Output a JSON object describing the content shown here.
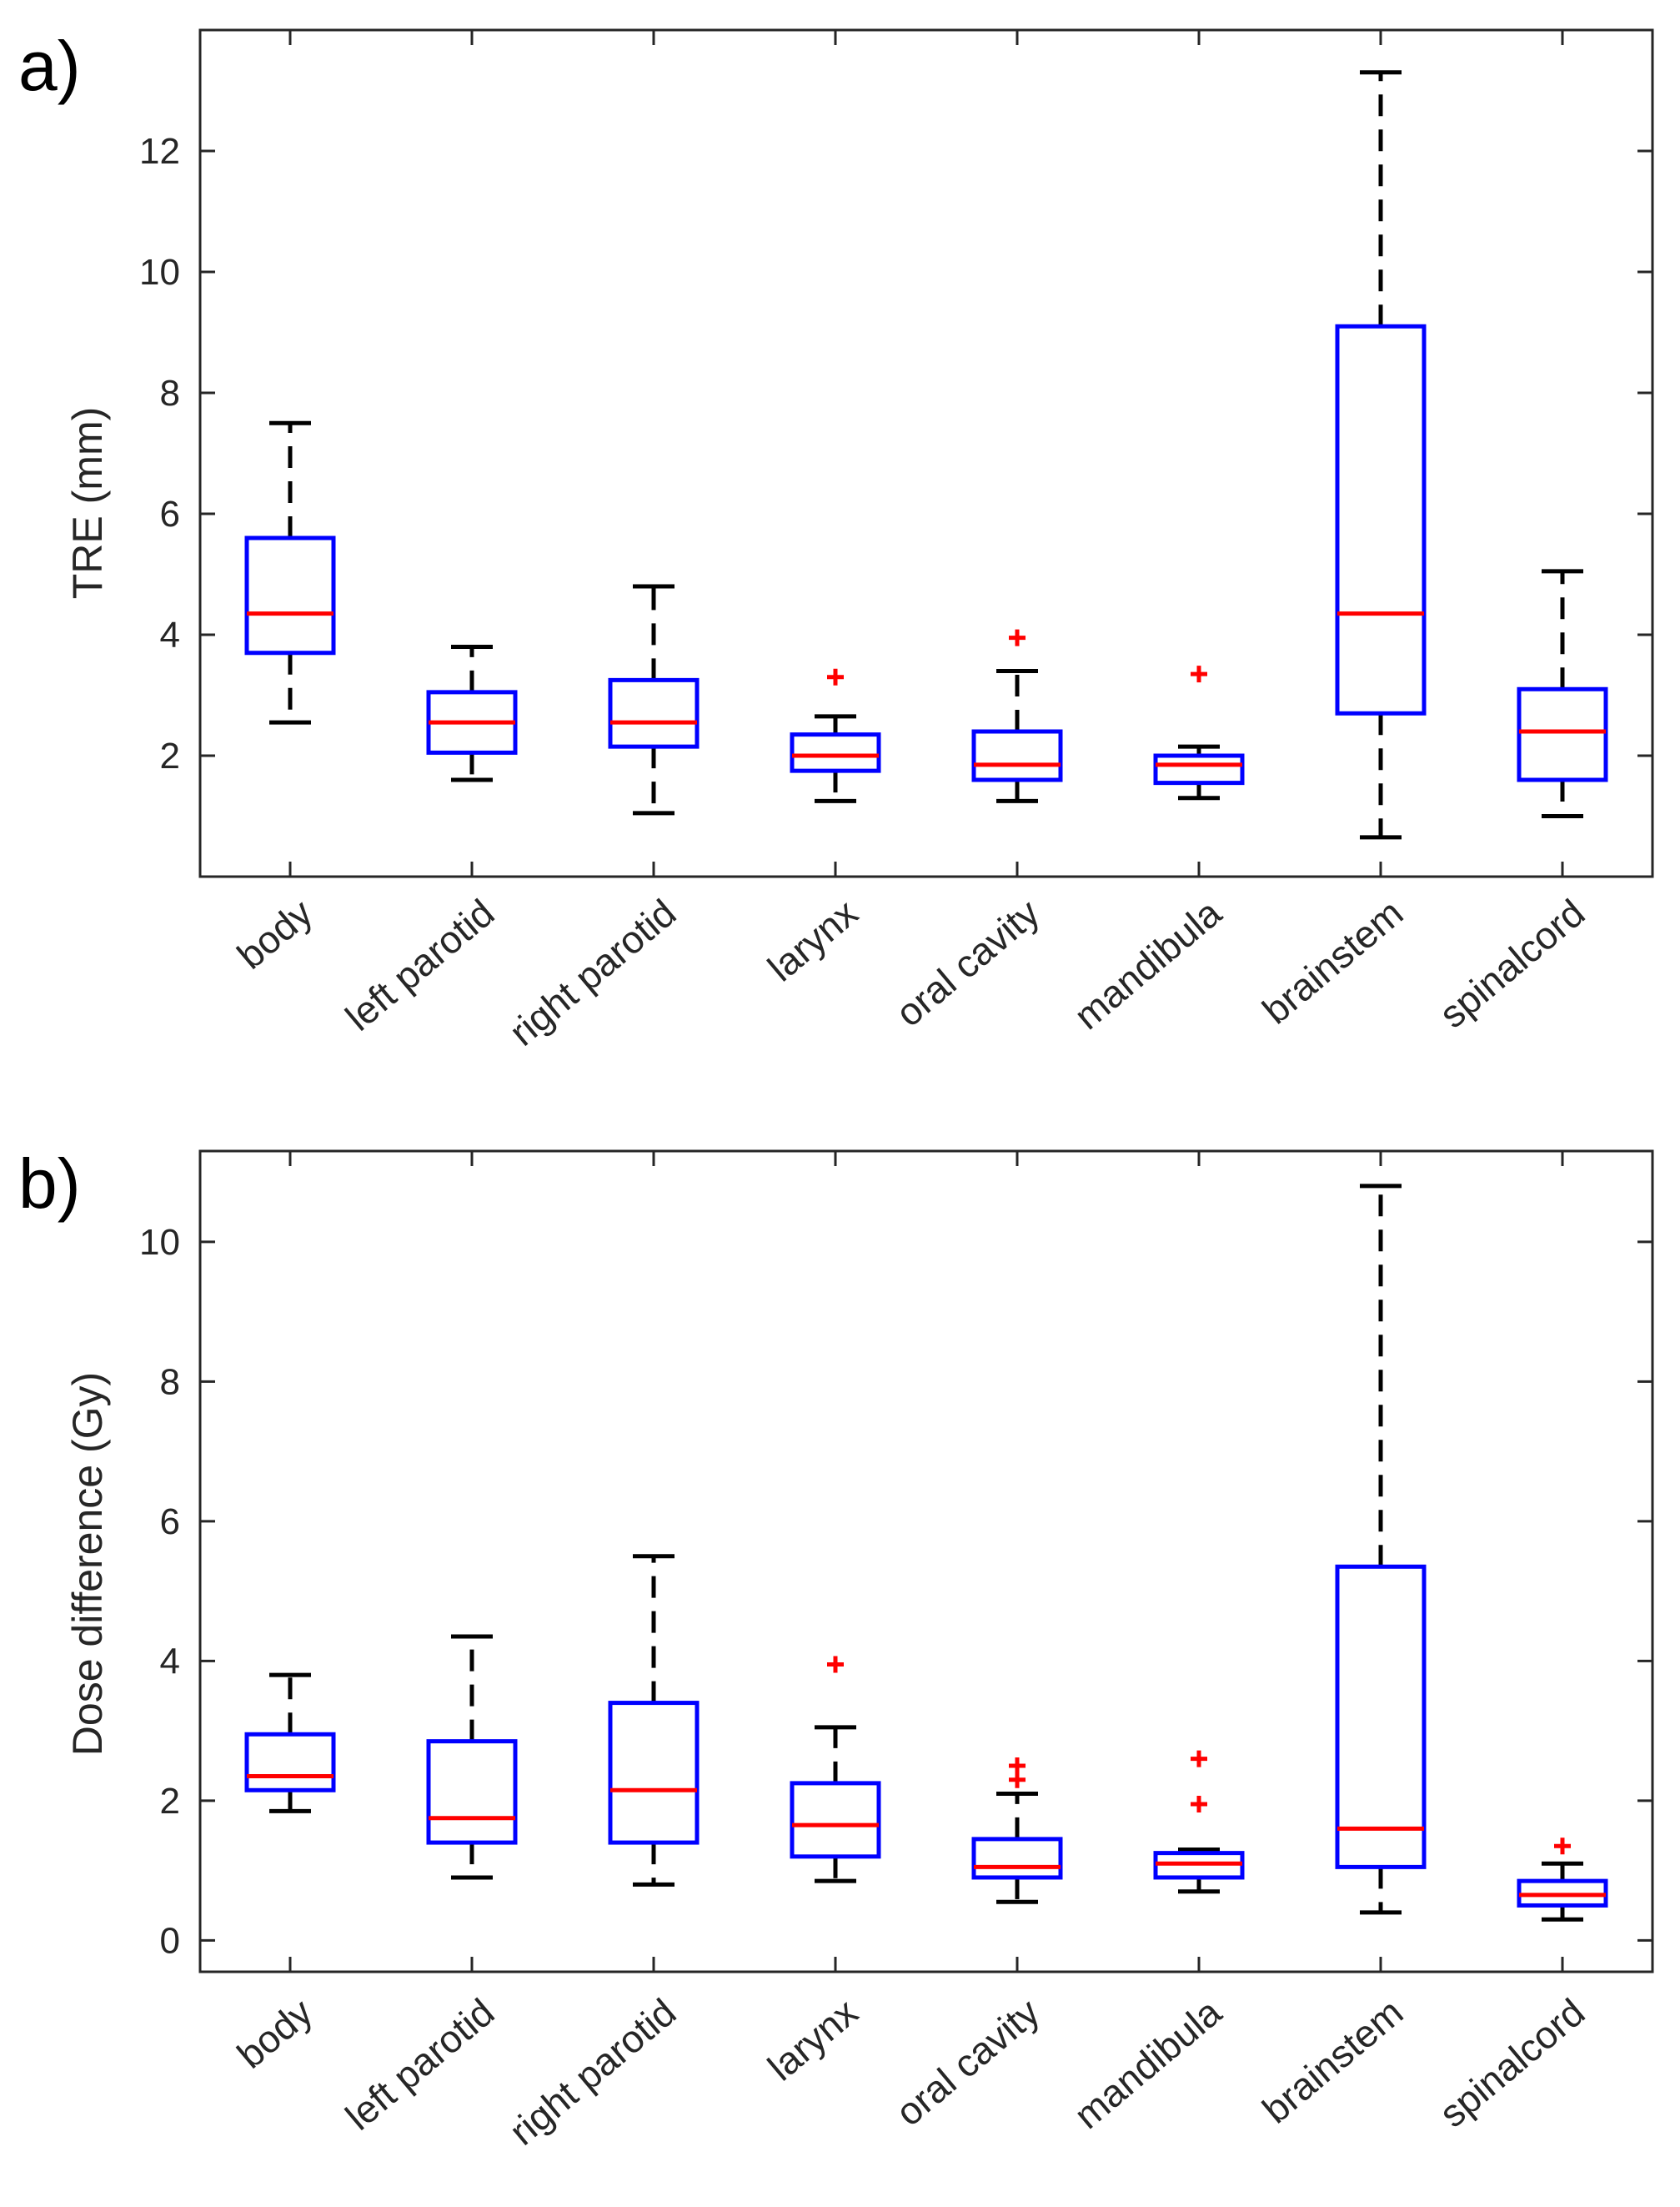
{
  "chart_data": [
    {
      "panel_label": "a)",
      "type": "boxplot",
      "ylabel": "TRE (mm)",
      "ylim": [
        0,
        14
      ],
      "yticks": [
        "2",
        "4",
        "6",
        "8",
        "10",
        "12"
      ],
      "categories": [
        "body",
        "left parotid",
        "right parotid",
        "larynx",
        "oral cavity",
        "mandibula",
        "brainstem",
        "spinalcord"
      ],
      "boxes": [
        {
          "q1": 3.7,
          "median": 4.35,
          "q3": 5.6,
          "whisker_low": 2.55,
          "whisker_high": 7.5,
          "outliers": []
        },
        {
          "q1": 2.05,
          "median": 2.55,
          "q3": 3.05,
          "whisker_low": 1.6,
          "whisker_high": 3.8,
          "outliers": []
        },
        {
          "q1": 2.15,
          "median": 2.55,
          "q3": 3.25,
          "whisker_low": 1.05,
          "whisker_high": 4.8,
          "outliers": []
        },
        {
          "q1": 1.75,
          "median": 2.0,
          "q3": 2.35,
          "whisker_low": 1.25,
          "whisker_high": 2.65,
          "outliers": [
            3.3
          ]
        },
        {
          "q1": 1.6,
          "median": 1.85,
          "q3": 2.4,
          "whisker_low": 1.25,
          "whisker_high": 3.4,
          "outliers": [
            3.95
          ]
        },
        {
          "q1": 1.55,
          "median": 1.85,
          "q3": 2.0,
          "whisker_low": 1.3,
          "whisker_high": 2.15,
          "outliers": [
            3.35
          ]
        },
        {
          "q1": 2.7,
          "median": 4.35,
          "q3": 9.1,
          "whisker_low": 0.65,
          "whisker_high": 13.3,
          "outliers": []
        },
        {
          "q1": 1.6,
          "median": 2.4,
          "q3": 3.1,
          "whisker_low": 1.0,
          "whisker_high": 5.05,
          "outliers": []
        }
      ]
    },
    {
      "panel_label": "b)",
      "type": "boxplot",
      "ylabel": "Dose difference (Gy)",
      "ylim": [
        -0.45,
        11.3
      ],
      "yticks": [
        "0",
        "2",
        "4",
        "6",
        "8",
        "10"
      ],
      "categories": [
        "body",
        "left parotid",
        "right parotid",
        "larynx",
        "oral cavity",
        "mandibula",
        "brainstem",
        "spinalcord"
      ],
      "boxes": [
        {
          "q1": 2.15,
          "median": 2.35,
          "q3": 2.95,
          "whisker_low": 1.85,
          "whisker_high": 3.8,
          "outliers": []
        },
        {
          "q1": 1.4,
          "median": 1.75,
          "q3": 2.85,
          "whisker_low": 0.9,
          "whisker_high": 4.35,
          "outliers": []
        },
        {
          "q1": 1.4,
          "median": 2.15,
          "q3": 3.4,
          "whisker_low": 0.8,
          "whisker_high": 5.5,
          "outliers": []
        },
        {
          "q1": 1.2,
          "median": 1.65,
          "q3": 2.25,
          "whisker_low": 0.85,
          "whisker_high": 3.05,
          "outliers": [
            3.95
          ]
        },
        {
          "q1": 0.9,
          "median": 1.05,
          "q3": 1.45,
          "whisker_low": 0.55,
          "whisker_high": 2.1,
          "outliers": [
            2.3,
            2.5
          ]
        },
        {
          "q1": 0.9,
          "median": 1.1,
          "q3": 1.25,
          "whisker_low": 0.7,
          "whisker_high": 1.3,
          "outliers": [
            1.95,
            2.6
          ]
        },
        {
          "q1": 1.05,
          "median": 1.6,
          "q3": 5.35,
          "whisker_low": 0.4,
          "whisker_high": 10.8,
          "outliers": []
        },
        {
          "q1": 0.5,
          "median": 0.65,
          "q3": 0.85,
          "whisker_low": 0.3,
          "whisker_high": 1.1,
          "outliers": [
            1.35
          ]
        }
      ]
    }
  ],
  "colors": {
    "box": "#0000ff",
    "median": "#ff0000",
    "whisker": "#000000",
    "outlier": "#ff0000"
  }
}
